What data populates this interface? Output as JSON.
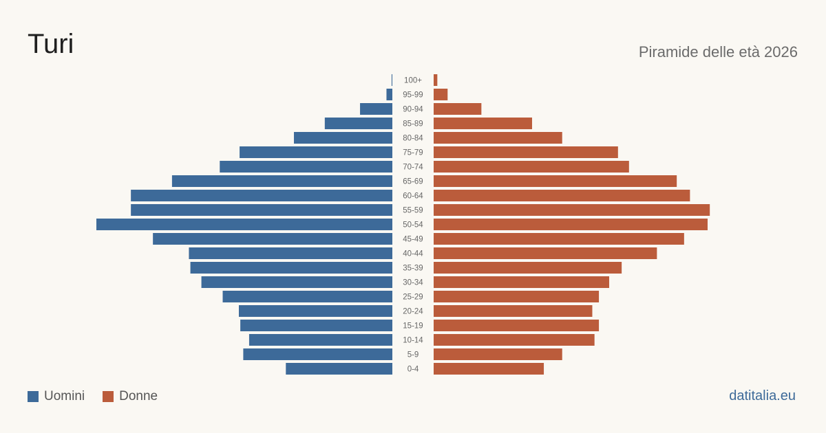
{
  "header": {
    "title": "Turi",
    "subtitle": "Piramide delle età 2026"
  },
  "legend": {
    "male_label": "Uomini",
    "female_label": "Donne"
  },
  "source": "datitalia.eu",
  "colors": {
    "male": "#3d6a99",
    "female": "#bb5c3b",
    "background": "#faf8f3"
  },
  "chart_data": {
    "type": "bar",
    "orientation": "horizontal-pyramid",
    "categories": [
      "100+",
      "95-99",
      "90-94",
      "85-89",
      "80-84",
      "75-79",
      "70-74",
      "65-69",
      "60-64",
      "55-59",
      "50-54",
      "45-49",
      "40-44",
      "35-39",
      "30-34",
      "25-29",
      "20-24",
      "15-19",
      "10-14",
      "5-9",
      "0-4"
    ],
    "series": [
      {
        "name": "Uomini",
        "values": [
          1,
          8,
          44,
          92,
          134,
          208,
          235,
          300,
          356,
          356,
          403,
          326,
          277,
          275,
          260,
          231,
          209,
          207,
          195,
          203,
          145
        ]
      },
      {
        "name": "Donne",
        "values": [
          5,
          19,
          65,
          134,
          175,
          251,
          266,
          331,
          349,
          376,
          373,
          341,
          304,
          256,
          239,
          225,
          216,
          225,
          219,
          175,
          150
        ]
      }
    ],
    "legend": "bottom-left"
  }
}
